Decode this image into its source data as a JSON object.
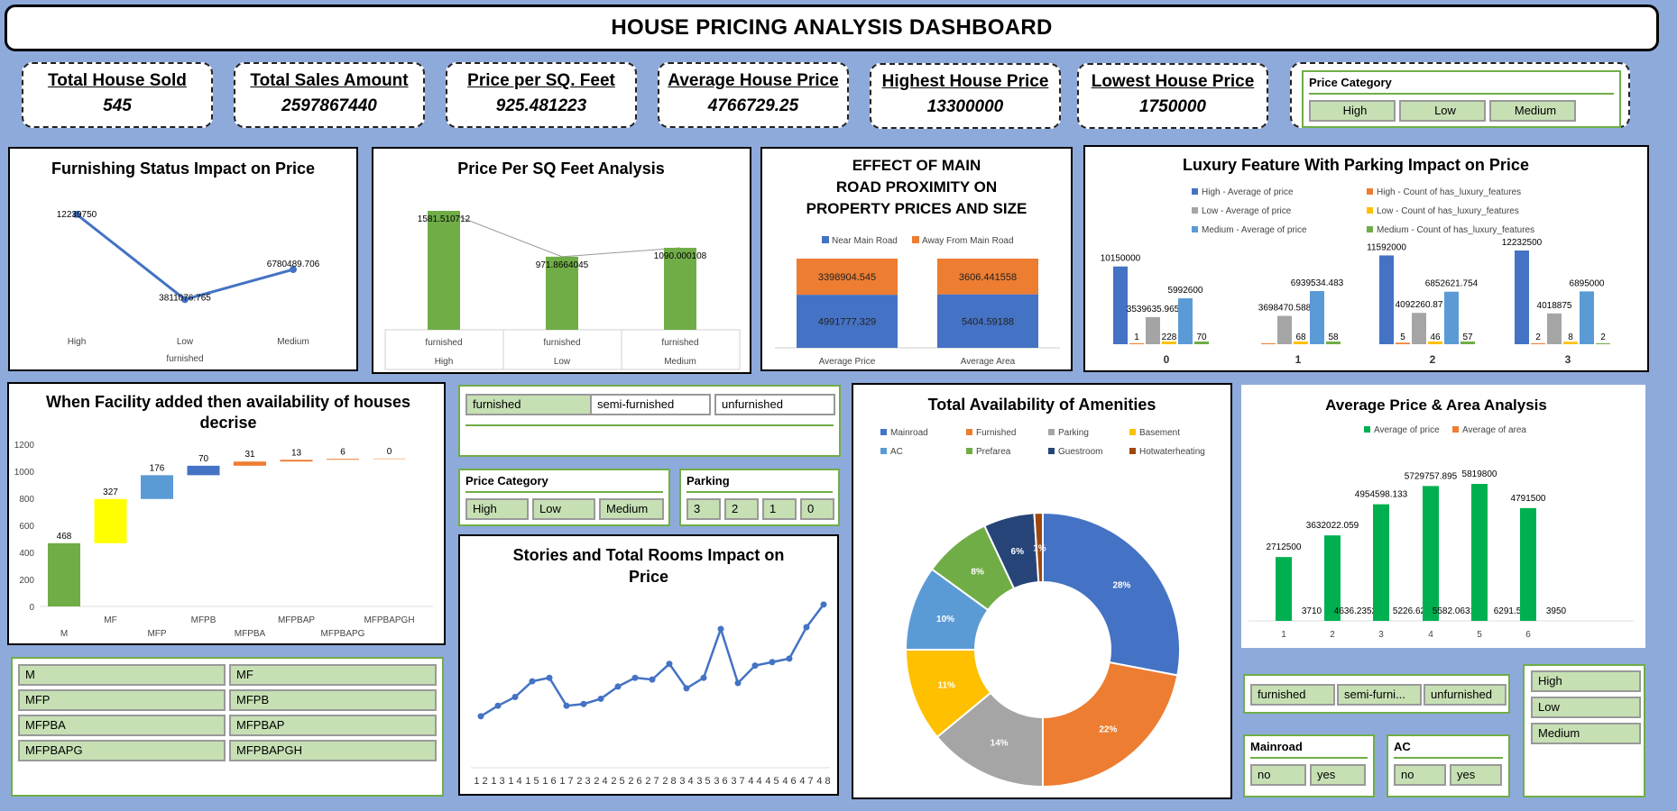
{
  "title": "HOUSE PRICING ANALYSIS DASHBOARD",
  "kpis": [
    {
      "label": "Total House Sold",
      "value": "545"
    },
    {
      "label": "Total Sales Amount",
      "value": "2597867440"
    },
    {
      "label": "Price per SQ. Feet",
      "value": "925.481223"
    },
    {
      "label": "Average House Price",
      "value": "4766729.25"
    },
    {
      "label": "Highest House Price",
      "value": "13300000"
    },
    {
      "label": "Lowest House Price",
      "value": "1750000"
    }
  ],
  "slicers": {
    "top_price_category": {
      "title": "Price Category",
      "items": [
        "High",
        "Low",
        "Medium"
      ]
    },
    "furnishing": {
      "items": [
        "furnished",
        "semi-furnished",
        "unfurnished"
      ]
    },
    "mid_price_category": {
      "title": "Price Category",
      "items": [
        "High",
        "Low",
        "Medium"
      ]
    },
    "parking": {
      "title": "Parking",
      "items": [
        "3",
        "2",
        "1",
        "0"
      ]
    },
    "facility_codes": {
      "items": [
        "M",
        "MF",
        "MFP",
        "MFPB",
        "MFPBA",
        "MFPBAP",
        "MFPBAPG",
        "MFPBAPGH"
      ]
    },
    "furnishing_bottom": {
      "items": [
        "furnished",
        "semi-furni...",
        "unfurnished"
      ]
    },
    "price_bottom": {
      "items": [
        "High",
        "Low",
        "Medium"
      ]
    },
    "mainroad": {
      "title": "Mainroad",
      "items": [
        "no",
        "yes"
      ]
    },
    "ac": {
      "title": "AC",
      "items": [
        "no",
        "yes"
      ]
    }
  },
  "chart_data": [
    {
      "id": "furnishing",
      "type": "line",
      "title": "Furnishing Status Impact on Price",
      "categories": [
        "High",
        "Low",
        "Medium"
      ],
      "category_group": "furnished",
      "values": [
        12239750,
        3811076.765,
        6780489.706
      ],
      "labels": [
        "12239750",
        "3811076.765",
        "6780489.706"
      ],
      "color": "#4472c4"
    },
    {
      "id": "price_sqft",
      "type": "bar",
      "title": "Price Per SQ Feet Analysis",
      "categories": [
        "furnished",
        "furnished",
        "furnished"
      ],
      "groups": [
        "High",
        "Low",
        "Medium"
      ],
      "values": [
        1581.510712,
        971.8664045,
        1090.000108
      ],
      "labels": [
        "1581.510712",
        "971.8664045",
        "1090.000108"
      ],
      "color": "#70ad47"
    },
    {
      "id": "mainroad",
      "type": "bar",
      "stacked": true,
      "title": "EFFECT OF MAIN ROAD PROXIMITY ON PROPERTY PRICES AND SIZE",
      "categories": [
        "Average Price",
        "Average Area"
      ],
      "series": [
        {
          "name": "Near Main Road",
          "values": [
            4991777.329,
            5404.59188
          ],
          "labels": [
            "4991777.329",
            "5404.59188"
          ],
          "color": "#4472c4"
        },
        {
          "name": "Away From Main Road",
          "values": [
            3398904.545,
            3606.441558
          ],
          "labels": [
            "3398904.545",
            "3606.441558"
          ],
          "color": "#ed7d31"
        }
      ]
    },
    {
      "id": "luxury",
      "type": "bar",
      "title": "Luxury Feature With Parking Impact on Price",
      "categories": [
        "0",
        "1",
        "2",
        "3"
      ],
      "series": [
        {
          "name": "High - Average of price",
          "color": "#4472c4",
          "values": [
            10150000,
            null,
            11592000,
            12232500
          ],
          "labels": [
            "10150000",
            "",
            "11592000",
            "12232500"
          ]
        },
        {
          "name": "High - Count of has_luxury_features",
          "color": "#ed7d31",
          "values": [
            1,
            0,
            5,
            2
          ],
          "labels": [
            "1",
            "",
            "5",
            "2"
          ]
        },
        {
          "name": "Low - Average of price",
          "color": "#a5a5a5",
          "values": [
            3539635.965,
            3698470.588,
            4092260.87,
            4018875
          ],
          "labels": [
            "3539635.965",
            "3698470.588",
            "4092260.87",
            "4018875"
          ]
        },
        {
          "name": "Low - Count of has_luxury_features",
          "color": "#ffc000",
          "values": [
            228,
            68,
            46,
            8
          ],
          "labels": [
            "228",
            "68",
            "46",
            "8"
          ]
        },
        {
          "name": "Medium - Average of price",
          "color": "#5b9bd5",
          "values": [
            5992600,
            6939534.483,
            6852621.754,
            6895000
          ],
          "labels": [
            "5992600",
            "6939534.483",
            "6852621.754",
            "6895000"
          ]
        },
        {
          "name": "Medium - Count of has_luxury_features",
          "color": "#70ad47",
          "values": [
            70,
            58,
            57,
            2
          ],
          "labels": [
            "70",
            "58",
            "57",
            "2"
          ]
        }
      ]
    },
    {
      "id": "waterfall",
      "type": "bar",
      "subtype": "waterfall",
      "title": "When Facility added then availability of houses decrise",
      "categories": [
        "M",
        "MF",
        "MFP",
        "MFPB",
        "MFPBA",
        "MFPBAP",
        "MFPBAPG",
        "MFPBAPGH"
      ],
      "values": [
        468,
        327,
        176,
        70,
        31,
        13,
        6,
        0
      ],
      "colors": [
        "#70ad47",
        "#ffff00",
        "#5b9bd5",
        "#4472c4",
        "#ed7d31",
        "#ed7d31",
        "#ed7d31",
        "#ed7d31"
      ],
      "yticks": [
        0,
        200,
        400,
        600,
        800,
        1000,
        1200
      ],
      "ylim": [
        0,
        1200
      ]
    },
    {
      "id": "stories",
      "type": "line",
      "title": "Stories and Total Rooms Impact on Price",
      "categories": [
        "1 2",
        "1 3",
        "1 4",
        "1 5",
        "1 6",
        "1 7",
        "2 3",
        "2 4",
        "2 5",
        "2 6",
        "2 7",
        "2 8",
        "3 4",
        "3 5",
        "3 6",
        "3 7",
        "4 4",
        "4 5",
        "4 6",
        "4 7",
        "4 8"
      ],
      "values": [
        3.3,
        3.9,
        4.4,
        5.3,
        5.5,
        3.9,
        4.0,
        4.3,
        5.0,
        5.5,
        5.4,
        6.3,
        4.9,
        5.5,
        8.3,
        5.2,
        6.2,
        6.4,
        6.6,
        8.4,
        9.7
      ],
      "color": "#4472c4"
    },
    {
      "id": "amenities",
      "type": "pie",
      "subtype": "donut",
      "title": "Total Availability of Amenities",
      "categories": [
        "Mainroad",
        "Furnished",
        "Parking",
        "Basement",
        "AC",
        "Prefarea",
        "Guestroom",
        "Hotwaterheating"
      ],
      "values": [
        28,
        22,
        14,
        11,
        10,
        8,
        6,
        1
      ],
      "labels": [
        "28%",
        "22%",
        "14%",
        "11%",
        "10%",
        "8%",
        "6%",
        "1%"
      ],
      "colors": [
        "#4472c4",
        "#ed7d31",
        "#a5a5a5",
        "#ffc000",
        "#5b9bd5",
        "#70ad47",
        "#264478",
        "#9e480e"
      ]
    },
    {
      "id": "avg_price_area",
      "type": "bar",
      "title": "Average Price & Area Analysis",
      "categories": [
        "1",
        "2",
        "3",
        "4",
        "5",
        "6"
      ],
      "series": [
        {
          "name": "Average of price",
          "color": "#00b050",
          "values": [
            2712500,
            3632022.059,
            4954598.133,
            5729757.895,
            5819800,
            4791500
          ],
          "labels": [
            "2712500",
            "3632022.059",
            "4954598.133",
            "5729757.895",
            "5819800",
            "4791500"
          ]
        },
        {
          "name": "Average of area",
          "color": "#ed7d31",
          "values": [
            3710,
            4636.235294,
            5226.62,
            5582.063158,
            6291.5,
            3950
          ],
          "labels": [
            "3710",
            "4636.235294",
            "5226.62",
            "5582.063158",
            "6291.5",
            "3950"
          ]
        }
      ]
    }
  ]
}
